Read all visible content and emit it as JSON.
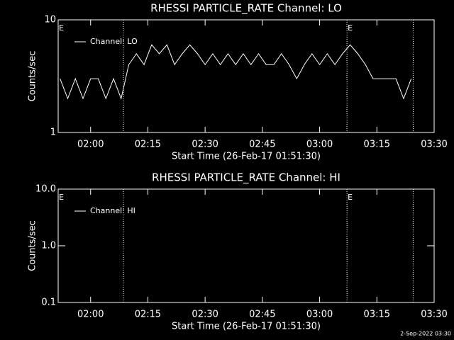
{
  "chart_data": [
    {
      "type": "line",
      "title": "RHESSI PARTICLE_RATE Channel: LO",
      "xlabel": "Start Time (26-Feb-17 01:51:30)",
      "ylabel": "Counts/sec",
      "log_y": true,
      "grid": false,
      "legend": "upper left",
      "xlim": [
        "01:51:30",
        "03:30"
      ],
      "xticks": [
        "02:00",
        "02:15",
        "02:30",
        "02:45",
        "03:00",
        "03:15",
        "03:30"
      ],
      "ylim": [
        1,
        10
      ],
      "yticks": [
        1,
        10
      ],
      "x": [
        "01:52",
        "01:54",
        "01:56",
        "01:58",
        "02:00",
        "02:02",
        "02:04",
        "02:06",
        "02:08",
        "02:10",
        "02:12",
        "02:14",
        "02:16",
        "02:18",
        "02:20",
        "02:22",
        "02:24",
        "02:26",
        "02:28",
        "02:30",
        "02:32",
        "02:34",
        "02:36",
        "02:38",
        "02:40",
        "02:42",
        "02:44",
        "02:46",
        "02:48",
        "02:50",
        "02:52",
        "02:54",
        "02:56",
        "02:58",
        "03:00",
        "03:02",
        "03:04",
        "03:06",
        "03:08",
        "03:10",
        "03:12",
        "03:14",
        "03:16",
        "03:18",
        "03:20",
        "03:22",
        "03:24"
      ],
      "series": [
        {
          "name": "Channel: LO",
          "color": "#ffffff",
          "values": [
            3,
            2,
            3,
            2,
            3,
            3,
            2,
            3,
            2,
            4,
            5,
            4,
            6,
            5,
            6,
            4,
            5,
            6,
            5,
            4,
            5,
            4,
            5,
            4,
            5,
            4,
            5,
            4,
            4,
            5,
            4,
            3,
            4,
            5,
            4,
            5,
            4,
            5,
            6,
            5,
            4,
            3,
            3,
            3,
            3,
            2,
            3
          ]
        }
      ],
      "vlines": [
        "02:08:36",
        "03:07:10",
        "03:24:30"
      ],
      "markers": [
        {
          "x": "01:51:30",
          "label": "E"
        },
        {
          "x": "03:07:10",
          "label": "E"
        }
      ]
    },
    {
      "type": "line",
      "title": "RHESSI PARTICLE_RATE Channel: HI",
      "xlabel": "Start Time (26-Feb-17 01:51:30)",
      "ylabel": "Counts/sec",
      "log_y": true,
      "grid": false,
      "legend": "upper left",
      "xlim": [
        "01:51:30",
        "03:30"
      ],
      "xticks": [
        "02:00",
        "02:15",
        "02:30",
        "02:45",
        "03:00",
        "03:15",
        "03:30"
      ],
      "ylim": [
        0.1,
        10
      ],
      "yticks": [
        0.1,
        {
          "value": 1,
          "label": "1.0"
        },
        {
          "value": 10,
          "label": "10.0"
        }
      ],
      "x": [],
      "series": [
        {
          "name": "Channel: HI",
          "color": "#ffffff",
          "values": []
        }
      ],
      "vlines": [
        "02:08:36",
        "03:07:10",
        "03:24:30"
      ],
      "markers": [
        {
          "x": "01:51:30",
          "label": "E"
        },
        {
          "x": "03:07:10",
          "label": "E"
        }
      ]
    }
  ],
  "footer": "2-Sep-2022 03:30"
}
